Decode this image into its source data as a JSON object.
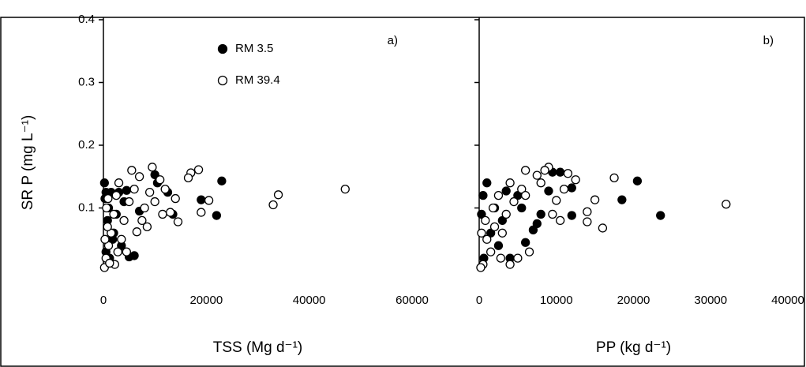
{
  "chart_data": [
    {
      "type": "scatter",
      "panel_label": "a)",
      "xlabel": "TSS (Mg d⁻¹)",
      "ylabel": "SR P (mg L⁻¹)",
      "xlim": [
        0,
        60000
      ],
      "xticks": [
        0,
        20000,
        40000,
        60000
      ],
      "ylim": [
        0,
        0.4
      ],
      "yticks": [
        0.1,
        0.2,
        0.3,
        0.4
      ],
      "legend": "top-center",
      "series": [
        {
          "name": "RM 3.5",
          "color": "#000000",
          "fill": "#000000",
          "x": [
            23000,
            22000,
            19000,
            13500,
            12500,
            10000,
            10500,
            5000,
            6000,
            200,
            500,
            1500,
            3000,
            4500,
            1000,
            800,
            2000,
            3500,
            500,
            1200,
            2500,
            4000,
            7000,
            300,
            1800
          ],
          "values": [
            0.143,
            0.088,
            0.113,
            0.09,
            0.125,
            0.153,
            0.14,
            0.022,
            0.024,
            0.14,
            0.125,
            0.125,
            0.125,
            0.128,
            0.1,
            0.08,
            0.06,
            0.04,
            0.03,
            0.02,
            0.09,
            0.11,
            0.095,
            0.115,
            0.05
          ]
        },
        {
          "name": "RM 39.4",
          "color": "#000000",
          "fill": "#ffffff",
          "x": [
            47000,
            34000,
            33000,
            19000,
            20500,
            18500,
            17000,
            16500,
            14000,
            14500,
            13000,
            12000,
            11000,
            9500,
            9000,
            8000,
            7000,
            6500,
            5500,
            5000,
            4000,
            3000,
            2500,
            2000,
            1500,
            1000,
            500,
            200,
            800,
            3500,
            4500,
            600,
            2200,
            1200,
            2800,
            6000,
            7500,
            8500,
            10000,
            11500,
            300,
            900
          ],
          "values": [
            0.13,
            0.121,
            0.105,
            0.093,
            0.112,
            0.161,
            0.156,
            0.148,
            0.115,
            0.078,
            0.093,
            0.13,
            0.145,
            0.165,
            0.125,
            0.1,
            0.15,
            0.062,
            0.16,
            0.11,
            0.08,
            0.14,
            0.12,
            0.09,
            0.06,
            0.04,
            0.02,
            0.005,
            0.07,
            0.05,
            0.03,
            0.1,
            0.01,
            0.012,
            0.03,
            0.13,
            0.08,
            0.07,
            0.11,
            0.09,
            0.05,
            0.115
          ]
        }
      ]
    },
    {
      "type": "scatter",
      "panel_label": "b)",
      "xlabel": "PP (kg d⁻¹)",
      "xlim": [
        0,
        40000
      ],
      "xticks": [
        0,
        10000,
        20000,
        30000,
        40000
      ],
      "ylim": [
        0,
        0.4
      ],
      "yticks": [
        0.1,
        0.2,
        0.3,
        0.4
      ],
      "series": [
        {
          "color": "#000000",
          "fill": "#000000",
          "x": [
            20500,
            23500,
            18500,
            12000,
            12000,
            10500,
            9500,
            9000,
            7500,
            7000,
            5000,
            3500,
            1000,
            500,
            2000,
            300,
            1500,
            2500,
            4000,
            600,
            3000,
            6000,
            5500,
            8000
          ],
          "values": [
            0.143,
            0.088,
            0.113,
            0.132,
            0.088,
            0.157,
            0.157,
            0.127,
            0.075,
            0.065,
            0.12,
            0.127,
            0.14,
            0.12,
            0.1,
            0.09,
            0.06,
            0.04,
            0.02,
            0.02,
            0.08,
            0.045,
            0.1,
            0.09
          ]
        },
        {
          "color": "#000000",
          "fill": "#ffffff",
          "x": [
            32000,
            17500,
            16000,
            15000,
            14000,
            14000,
            12500,
            11500,
            11000,
            10000,
            9000,
            8500,
            8000,
            7500,
            6000,
            5500,
            4500,
            4000,
            3500,
            3000,
            2500,
            2000,
            1500,
            1000,
            500,
            200,
            6500,
            5000,
            4000,
            800,
            1800,
            2800,
            6000,
            9500,
            10500,
            300
          ],
          "values": [
            0.106,
            0.148,
            0.068,
            0.113,
            0.094,
            0.078,
            0.145,
            0.155,
            0.13,
            0.112,
            0.165,
            0.16,
            0.14,
            0.152,
            0.16,
            0.13,
            0.11,
            0.14,
            0.09,
            0.06,
            0.12,
            0.07,
            0.03,
            0.05,
            0.01,
            0.005,
            0.03,
            0.02,
            0.01,
            0.08,
            0.1,
            0.02,
            0.12,
            0.09,
            0.08,
            0.06
          ]
        }
      ]
    }
  ]
}
